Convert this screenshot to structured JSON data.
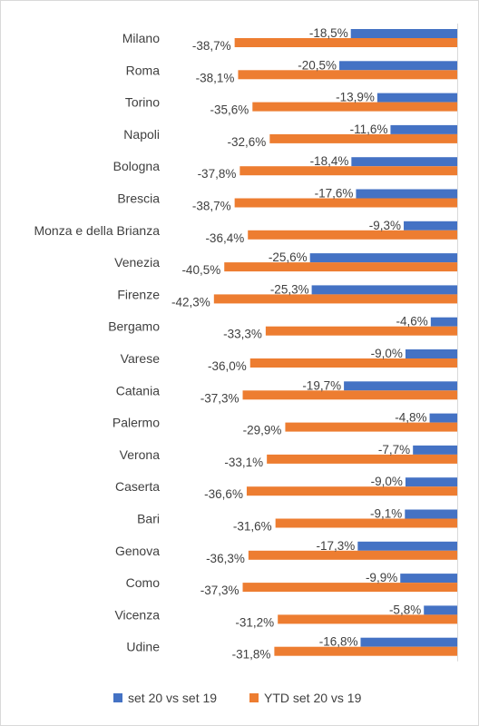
{
  "chart_data": {
    "type": "bar",
    "orientation": "horizontal",
    "categories": [
      "Milano",
      "Roma",
      "Torino",
      "Napoli",
      "Bologna",
      "Brescia",
      "Monza e della Brianza",
      "Venezia",
      "Firenze",
      "Bergamo",
      "Varese",
      "Catania",
      "Palermo",
      "Verona",
      "Caserta",
      "Bari",
      "Genova",
      "Como",
      "Vicenza",
      "Udine"
    ],
    "series": [
      {
        "name": "set 20 vs set 19",
        "color": "#4472C4",
        "values": [
          -18.5,
          -20.5,
          -13.9,
          -11.6,
          -18.4,
          -17.6,
          -9.3,
          -25.6,
          -25.3,
          -4.6,
          -9.0,
          -19.7,
          -4.8,
          -7.7,
          -9.0,
          -9.1,
          -17.3,
          -9.9,
          -5.8,
          -16.8
        ],
        "labels": [
          "-18,5%",
          "-20,5%",
          "-13,9%",
          "-11,6%",
          "-18,4%",
          "-17,6%",
          "-9,3%",
          "-25,6%",
          "-25,3%",
          "-4,6%",
          "-9,0%",
          "-19,7%",
          "-4,8%",
          "-7,7%",
          "-9,0%",
          "-9,1%",
          "-17,3%",
          "-9,9%",
          "-5,8%",
          "-16,8%"
        ]
      },
      {
        "name": "YTD set 20 vs 19",
        "color": "#ED7D31",
        "values": [
          -38.7,
          -38.1,
          -35.6,
          -32.6,
          -37.8,
          -38.7,
          -36.4,
          -40.5,
          -42.3,
          -33.3,
          -36.0,
          -37.3,
          -29.9,
          -33.1,
          -36.6,
          -31.6,
          -36.3,
          -37.3,
          -31.2,
          -31.8
        ],
        "labels": [
          "-38,7%",
          "-38,1%",
          "-35,6%",
          "-32,6%",
          "-37,8%",
          "-38,7%",
          "-36,4%",
          "-40,5%",
          "-42,3%",
          "-33,3%",
          "-36,0%",
          "-37,3%",
          "-29,9%",
          "-33,1%",
          "-36,6%",
          "-31,6%",
          "-36,3%",
          "-37,3%",
          "-31,2%",
          "-31,8%"
        ]
      }
    ],
    "title": "",
    "xlabel": "",
    "ylabel": "",
    "grid": false,
    "legend_position": "bottom"
  }
}
